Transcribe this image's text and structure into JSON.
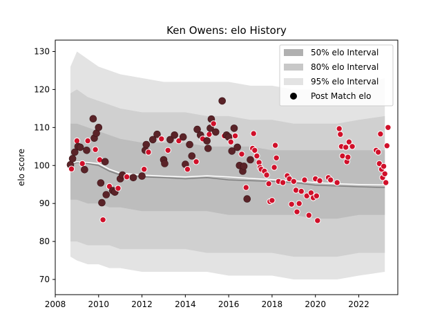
{
  "chart_data": {
    "type": "line",
    "title": "Ken Owens: elo History",
    "xlabel": "",
    "ylabel": "elo score",
    "xlim": [
      2008.0,
      2023.8
    ],
    "ylim": [
      66,
      133
    ],
    "xticks": [
      2008,
      2010,
      2012,
      2014,
      2016,
      2018,
      2020,
      2022
    ],
    "yticks": [
      70,
      80,
      90,
      100,
      110,
      120,
      130
    ],
    "grid": false,
    "legend_position": "top-right",
    "colors": {
      "band95": "#e3e3e3",
      "band80": "#d0d0d0",
      "band50": "#bdbdbd",
      "median": "#808080",
      "trend": "#ffffff",
      "marker_fill": "#5a2328",
      "marker_highlight": "#d0102a"
    },
    "legend": [
      {
        "label": "50% elo Interval",
        "kind": "patch",
        "color": "#b0b0b0"
      },
      {
        "label": "80% elo Interval",
        "kind": "patch",
        "color": "#c8c8c8"
      },
      {
        "label": "95% elo Interval",
        "kind": "patch",
        "color": "#e3e3e3"
      },
      {
        "label": "Post Match elo",
        "kind": "marker",
        "color": "#000000"
      }
    ],
    "band_x": [
      2008.7,
      2009.0,
      2009.5,
      2010.0,
      2010.5,
      2011.0,
      2012.0,
      2013.0,
      2014.0,
      2015.0,
      2016.0,
      2017.0,
      2018.0,
      2019.0,
      2020.0,
      2021.0,
      2022.0,
      2023.2
    ],
    "bands": {
      "p95_upper": [
        126,
        130,
        128,
        126,
        125,
        124,
        123,
        122,
        122,
        122,
        122,
        121,
        121,
        120,
        120,
        120,
        121,
        123
      ],
      "p95_lower": [
        76,
        75,
        74,
        74,
        73,
        73,
        72,
        72,
        72,
        72,
        71,
        71,
        71,
        70,
        70,
        70,
        71,
        72
      ],
      "p80_upper": [
        119,
        120,
        118,
        117,
        116,
        115,
        114,
        114,
        114,
        113,
        113,
        112,
        112,
        111,
        111,
        111,
        112,
        113
      ],
      "p80_lower": [
        80,
        80,
        79,
        79,
        79,
        78,
        78,
        78,
        78,
        77,
        77,
        77,
        77,
        76,
        76,
        76,
        77,
        77
      ],
      "p50_upper": [
        111,
        111,
        110,
        109,
        108,
        107,
        106,
        106,
        106,
        105,
        105,
        105,
        104,
        104,
        104,
        104,
        104,
        104
      ],
      "p50_lower": [
        91,
        91,
        90,
        90,
        89,
        89,
        88,
        88,
        88,
        88,
        87,
        87,
        87,
        87,
        86,
        86,
        87,
        87
      ]
    },
    "median_line": {
      "x": [
        2008.7,
        2009.0,
        2009.5,
        2010.0,
        2010.5,
        2011.0,
        2012.0,
        2013.0,
        2014.0,
        2015.0,
        2016.0,
        2017.0,
        2018.0,
        2019.0,
        2020.0,
        2021.0,
        2022.0,
        2023.2
      ],
      "y": [
        100.2,
        100.8,
        100.5,
        100.0,
        98.5,
        97.5,
        97.0,
        96.8,
        96.5,
        96.8,
        96.2,
        96.0,
        95.8,
        95.5,
        94.8,
        94.6,
        94.4,
        94.2
      ]
    },
    "trend_line": {
      "x": [
        2008.7,
        2009.0,
        2009.5,
        2010.0,
        2010.5,
        2011.0,
        2012.0,
        2013.0,
        2014.0,
        2015.0,
        2016.0,
        2017.0,
        2018.0,
        2019.0,
        2020.0,
        2021.0,
        2022.0,
        2023.2
      ],
      "y": [
        100.5,
        101.0,
        100.8,
        100.5,
        99.0,
        98.0,
        97.5,
        97.2,
        97.0,
        97.3,
        97.0,
        96.6,
        96.3,
        96.0,
        95.5,
        95.2,
        95.0,
        94.9
      ]
    },
    "post_match": [
      {
        "x": 2008.7,
        "y": 100.2
      },
      {
        "x": 2008.75,
        "y": 99.1
      },
      {
        "x": 2008.8,
        "y": 101.8
      },
      {
        "x": 2008.9,
        "y": 103.5
      },
      {
        "x": 2009.0,
        "y": 106.5
      },
      {
        "x": 2009.05,
        "y": 105.0
      },
      {
        "x": 2009.15,
        "y": 104.8
      },
      {
        "x": 2009.25,
        "y": 100.5
      },
      {
        "x": 2009.35,
        "y": 98.9
      },
      {
        "x": 2009.45,
        "y": 104.0
      },
      {
        "x": 2009.5,
        "y": 106.5
      },
      {
        "x": 2009.75,
        "y": 112.3
      },
      {
        "x": 2009.8,
        "y": 107.2
      },
      {
        "x": 2009.85,
        "y": 104.2
      },
      {
        "x": 2009.9,
        "y": 108.5
      },
      {
        "x": 2010.0,
        "y": 110.0
      },
      {
        "x": 2010.05,
        "y": 101.5
      },
      {
        "x": 2010.1,
        "y": 95.4
      },
      {
        "x": 2010.15,
        "y": 90.2
      },
      {
        "x": 2010.2,
        "y": 85.7
      },
      {
        "x": 2010.3,
        "y": 101.0
      },
      {
        "x": 2010.35,
        "y": 92.3
      },
      {
        "x": 2010.5,
        "y": 94.5
      },
      {
        "x": 2010.65,
        "y": 93.4
      },
      {
        "x": 2010.75,
        "y": 93.0
      },
      {
        "x": 2010.9,
        "y": 94.0
      },
      {
        "x": 2011.0,
        "y": 96.5
      },
      {
        "x": 2011.1,
        "y": 97.5
      },
      {
        "x": 2011.3,
        "y": 97.0
      },
      {
        "x": 2011.6,
        "y": 96.8
      },
      {
        "x": 2012.0,
        "y": 97.2
      },
      {
        "x": 2012.1,
        "y": 99.0
      },
      {
        "x": 2012.15,
        "y": 104.0
      },
      {
        "x": 2012.2,
        "y": 105.5
      },
      {
        "x": 2012.3,
        "y": 103.5
      },
      {
        "x": 2012.5,
        "y": 106.8
      },
      {
        "x": 2012.7,
        "y": 108.2
      },
      {
        "x": 2012.9,
        "y": 107.0
      },
      {
        "x": 2013.0,
        "y": 101.5
      },
      {
        "x": 2013.05,
        "y": 100.5
      },
      {
        "x": 2013.2,
        "y": 104.0
      },
      {
        "x": 2013.3,
        "y": 106.8
      },
      {
        "x": 2013.5,
        "y": 108.0
      },
      {
        "x": 2013.7,
        "y": 106.5
      },
      {
        "x": 2013.9,
        "y": 107.5
      },
      {
        "x": 2014.0,
        "y": 100.3
      },
      {
        "x": 2014.1,
        "y": 99.0
      },
      {
        "x": 2014.2,
        "y": 105.5
      },
      {
        "x": 2014.3,
        "y": 102.5
      },
      {
        "x": 2014.5,
        "y": 101.0
      },
      {
        "x": 2014.55,
        "y": 109.5
      },
      {
        "x": 2014.7,
        "y": 108.0
      },
      {
        "x": 2014.8,
        "y": 107.0
      },
      {
        "x": 2015.0,
        "y": 106.5
      },
      {
        "x": 2015.05,
        "y": 104.5
      },
      {
        "x": 2015.1,
        "y": 108.2
      },
      {
        "x": 2015.15,
        "y": 109.8
      },
      {
        "x": 2015.2,
        "y": 112.2
      },
      {
        "x": 2015.3,
        "y": 111.0
      },
      {
        "x": 2015.4,
        "y": 108.8
      },
      {
        "x": 2015.7,
        "y": 117.0
      },
      {
        "x": 2015.8,
        "y": 107.8
      },
      {
        "x": 2015.9,
        "y": 108.0
      },
      {
        "x": 2016.0,
        "y": 107.5
      },
      {
        "x": 2016.1,
        "y": 106.2
      },
      {
        "x": 2016.15,
        "y": 103.8
      },
      {
        "x": 2016.25,
        "y": 109.8
      },
      {
        "x": 2016.3,
        "y": 107.8
      },
      {
        "x": 2016.4,
        "y": 104.8
      },
      {
        "x": 2016.5,
        "y": 100.0
      },
      {
        "x": 2016.6,
        "y": 103.0
      },
      {
        "x": 2016.65,
        "y": 98.5
      },
      {
        "x": 2016.7,
        "y": 99.8
      },
      {
        "x": 2016.8,
        "y": 94.2
      },
      {
        "x": 2016.85,
        "y": 91.2
      },
      {
        "x": 2017.0,
        "y": 101.5
      },
      {
        "x": 2017.1,
        "y": 104.5
      },
      {
        "x": 2017.15,
        "y": 108.4
      },
      {
        "x": 2017.2,
        "y": 104.0
      },
      {
        "x": 2017.3,
        "y": 102.5
      },
      {
        "x": 2017.4,
        "y": 100.8
      },
      {
        "x": 2017.45,
        "y": 99.5
      },
      {
        "x": 2017.5,
        "y": 99.0
      },
      {
        "x": 2017.65,
        "y": 98.5
      },
      {
        "x": 2017.75,
        "y": 97.5
      },
      {
        "x": 2017.85,
        "y": 95.2
      },
      {
        "x": 2017.9,
        "y": 90.5
      },
      {
        "x": 2018.0,
        "y": 90.8
      },
      {
        "x": 2018.1,
        "y": 99.5
      },
      {
        "x": 2018.15,
        "y": 105.3
      },
      {
        "x": 2018.2,
        "y": 102.0
      },
      {
        "x": 2018.3,
        "y": 95.8
      },
      {
        "x": 2018.5,
        "y": 95.5
      },
      {
        "x": 2018.7,
        "y": 97.3
      },
      {
        "x": 2018.8,
        "y": 96.5
      },
      {
        "x": 2018.9,
        "y": 89.8
      },
      {
        "x": 2019.0,
        "y": 95.8
      },
      {
        "x": 2019.1,
        "y": 93.5
      },
      {
        "x": 2019.15,
        "y": 87.8
      },
      {
        "x": 2019.25,
        "y": 90.0
      },
      {
        "x": 2019.35,
        "y": 93.2
      },
      {
        "x": 2019.5,
        "y": 96.2
      },
      {
        "x": 2019.6,
        "y": 92.0
      },
      {
        "x": 2019.7,
        "y": 86.9
      },
      {
        "x": 2019.8,
        "y": 92.8
      },
      {
        "x": 2019.9,
        "y": 91.5
      },
      {
        "x": 2020.0,
        "y": 96.5
      },
      {
        "x": 2020.05,
        "y": 92.0
      },
      {
        "x": 2020.1,
        "y": 85.5
      },
      {
        "x": 2020.2,
        "y": 96.0
      },
      {
        "x": 2020.6,
        "y": 96.8
      },
      {
        "x": 2020.7,
        "y": 96.2
      },
      {
        "x": 2021.0,
        "y": 95.5
      },
      {
        "x": 2021.1,
        "y": 109.7
      },
      {
        "x": 2021.15,
        "y": 108.2
      },
      {
        "x": 2021.2,
        "y": 105.0
      },
      {
        "x": 2021.25,
        "y": 102.5
      },
      {
        "x": 2021.4,
        "y": 104.8
      },
      {
        "x": 2021.45,
        "y": 101.0
      },
      {
        "x": 2021.5,
        "y": 102.2
      },
      {
        "x": 2021.55,
        "y": 106.2
      },
      {
        "x": 2021.7,
        "y": 105.0
      },
      {
        "x": 2022.8,
        "y": 104.0
      },
      {
        "x": 2022.9,
        "y": 103.5
      },
      {
        "x": 2022.95,
        "y": 100.5
      },
      {
        "x": 2023.0,
        "y": 108.3
      },
      {
        "x": 2023.05,
        "y": 99.0
      },
      {
        "x": 2023.1,
        "y": 96.8
      },
      {
        "x": 2023.15,
        "y": 99.8
      },
      {
        "x": 2023.2,
        "y": 97.8
      },
      {
        "x": 2023.25,
        "y": 95.5
      },
      {
        "x": 2023.3,
        "y": 105.2
      },
      {
        "x": 2023.35,
        "y": 110.0
      }
    ]
  }
}
